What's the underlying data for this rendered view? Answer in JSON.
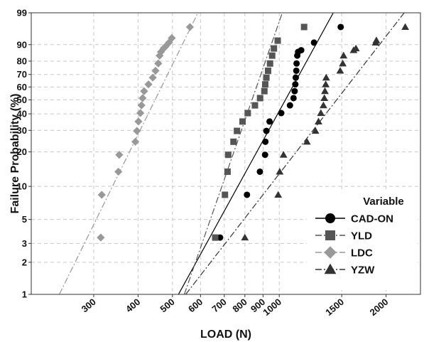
{
  "chart_data": {
    "type": "scatter",
    "xlabel": "LOAD (N)",
    "ylabel": "Failure Probability (%)",
    "x_scale": "log",
    "y_scale": "weibull",
    "xlim": [
      200,
      2500
    ],
    "ylim": [
      1,
      99
    ],
    "grid": true,
    "x_ticks": [
      300,
      400,
      500,
      600,
      700,
      800,
      900,
      1000,
      1500,
      2000
    ],
    "x_tick_labels": [
      "300",
      "400",
      "500",
      "600",
      "700",
      "800",
      "900",
      "1000",
      "1500",
      "2000"
    ],
    "y_ticks": [
      1,
      2,
      3,
      5,
      10,
      20,
      30,
      40,
      50,
      60,
      70,
      80,
      90,
      99
    ],
    "y_tick_labels": [
      "1",
      "2",
      "3",
      "5",
      "10",
      "20",
      "30",
      "40",
      "50",
      "60",
      "70",
      "80",
      "90",
      "99"
    ],
    "legend": {
      "title": "Variable",
      "position": "bottom-right"
    },
    "series": [
      {
        "name": "CAD-ON",
        "color": "#000000",
        "marker": "circle",
        "line_style": "solid",
        "fit": [
          [
            520,
            1
          ],
          [
            1420,
            99
          ]
        ],
        "x": [
          681,
          811,
          882,
          912,
          914,
          920,
          939,
          1013,
          1072,
          1097,
          1105,
          1110,
          1113,
          1117,
          1119,
          1124,
          1130,
          1153,
          1253,
          1490
        ],
        "y": [
          3.4,
          8.4,
          13.5,
          18.9,
          24.3,
          29.7,
          35.1,
          40.5,
          45.9,
          51.3,
          56.7,
          62.1,
          67.5,
          72.9,
          78.3,
          83.7,
          86,
          87,
          91,
          96.6
        ]
      },
      {
        "name": "YLD",
        "color": "#555555",
        "marker": "square",
        "line_style": "dashdot",
        "fit": [
          [
            540,
            1
          ],
          [
            1020,
            99
          ]
        ],
        "x": [
          660,
          703,
          715,
          718,
          743,
          760,
          788,
          815,
          854,
          883,
          908,
          913,
          920,
          930,
          942,
          955,
          966,
          990,
          1175
        ],
        "y": [
          3.4,
          8.4,
          13.5,
          18.9,
          24.3,
          29.7,
          35.1,
          40.5,
          45.9,
          51.3,
          56.7,
          62.1,
          67.5,
          72.9,
          78.3,
          83.7,
          88,
          91.9,
          96.6
        ]
      },
      {
        "name": "LDC",
        "color": "#999999",
        "marker": "diamond",
        "line_style": "dashdot",
        "fit": [
          [
            240,
            1
          ],
          [
            590,
            99
          ]
        ],
        "x": [
          314,
          316,
          352,
          354,
          393,
          397,
          401,
          406,
          409,
          412,
          416,
          428,
          440,
          448,
          456,
          460,
          464,
          472,
          478,
          489,
          498,
          560
        ],
        "y": [
          3.4,
          8.4,
          13.5,
          18.9,
          24.3,
          29.7,
          35.1,
          40.5,
          45.9,
          51.3,
          56.7,
          62.1,
          67.5,
          72.9,
          78.3,
          83.7,
          86,
          88,
          89,
          91,
          93,
          96.6
        ]
      },
      {
        "name": "YZW",
        "color": "#333333",
        "marker": "triangle",
        "line_style": "dashdot",
        "fit": [
          [
            545,
            1
          ],
          [
            2250,
            99
          ]
        ],
        "x": [
          800,
          993,
          1003,
          1028,
          1197,
          1265,
          1290,
          1310,
          1332,
          1340,
          1345,
          1352,
          1356,
          1485,
          1510,
          1518,
          1620,
          1645,
          1870,
          1878,
          2265
        ],
        "y": [
          3.4,
          8.4,
          13.5,
          18.9,
          24.3,
          29.7,
          35.1,
          40.5,
          45.9,
          51.3,
          56.7,
          62.1,
          67.5,
          72.9,
          78.3,
          83.7,
          87,
          88,
          91,
          92,
          96.6
        ]
      }
    ]
  }
}
